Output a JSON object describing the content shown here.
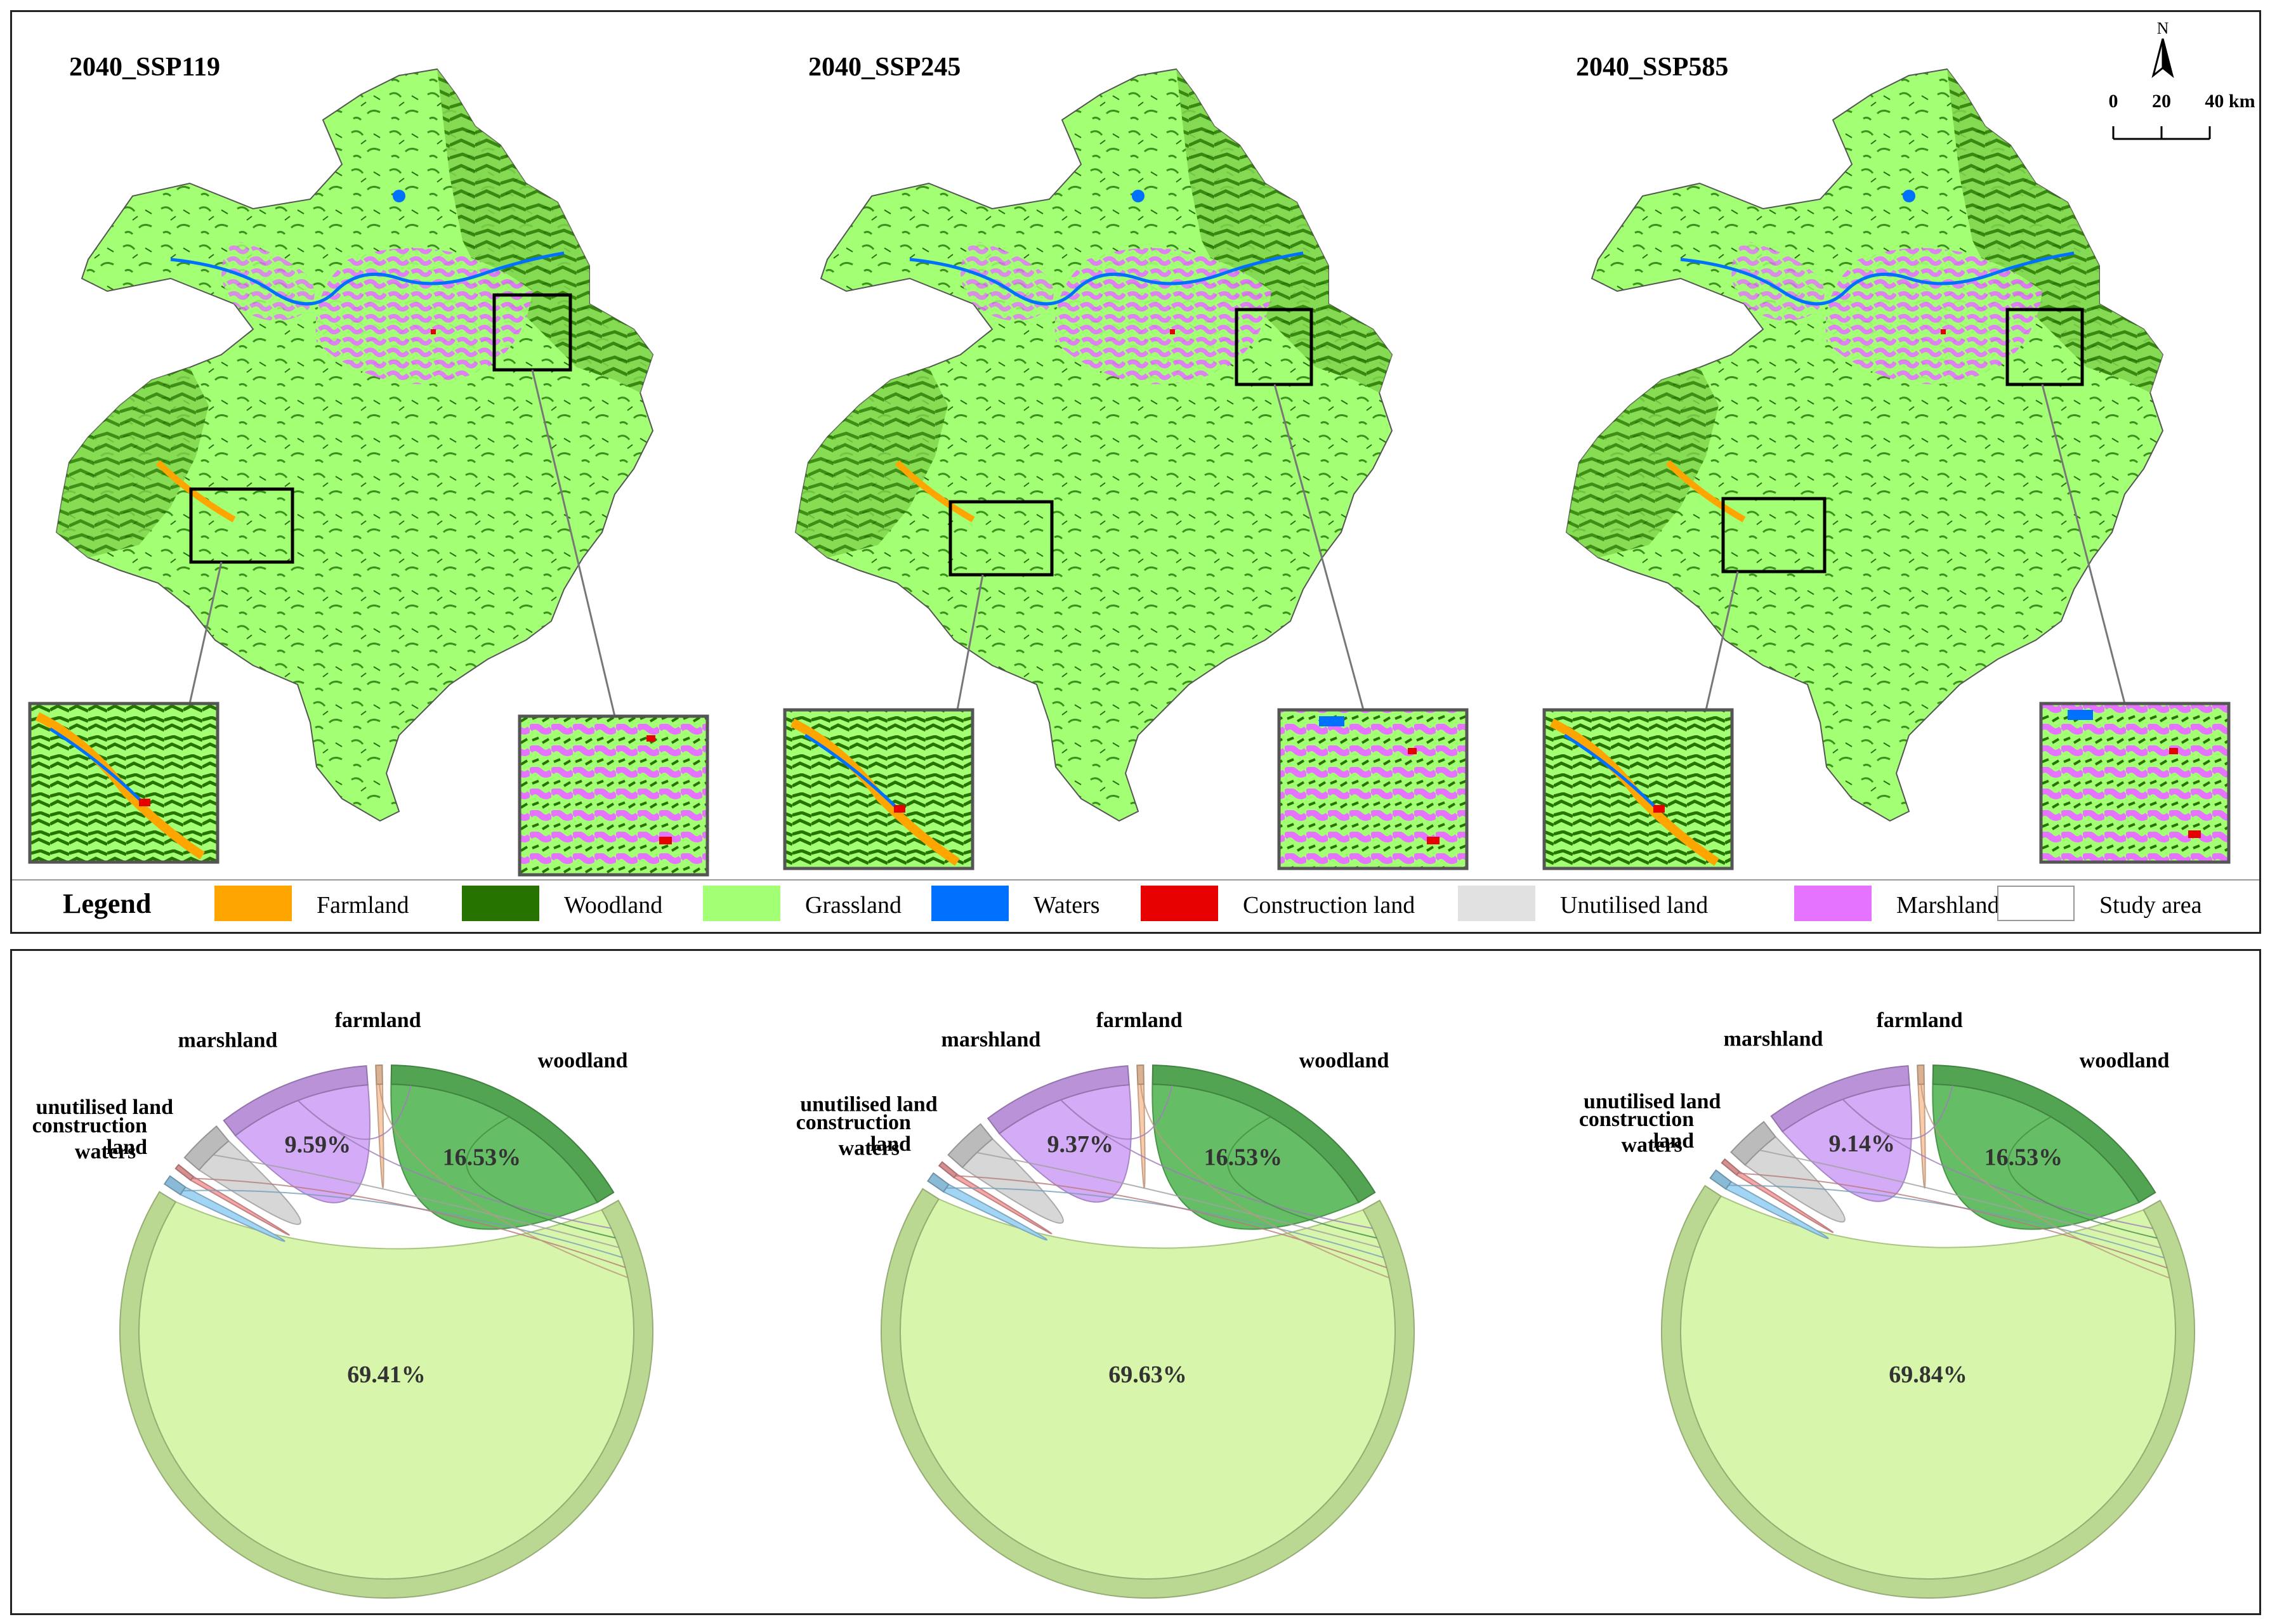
{
  "maps": [
    {
      "title": "2040_SSP119"
    },
    {
      "title": "2040_SSP245"
    },
    {
      "title": "2040_SSP585"
    }
  ],
  "north_label": "N",
  "scale": {
    "ticks": [
      "0",
      "20",
      "40 km"
    ]
  },
  "legend": {
    "title": "Legend",
    "items": [
      {
        "label": "Farmland",
        "color": "#FFA500"
      },
      {
        "label": "Woodland",
        "color": "#267300"
      },
      {
        "label": "Grassland",
        "color": "#A3FF73"
      },
      {
        "label": "Waters",
        "color": "#0070FF"
      },
      {
        "label": "Construction land",
        "color": "#E60000"
      },
      {
        "label": "Unutilised land",
        "color": "#E1E1E1"
      },
      {
        "label": "Marshland",
        "color": "#E573FF"
      },
      {
        "label": "Study area",
        "color": "#FFFFFF"
      }
    ]
  },
  "chart_data": [
    {
      "type": "chord",
      "scenario": "2040_SSP119",
      "segments": [
        {
          "name": "farmland",
          "value": 0.4,
          "color": "#F9C9A8",
          "pct_label": ""
        },
        {
          "name": "woodland",
          "value": 16.53,
          "color": "#5DBA5D",
          "pct_label": "16.53%"
        },
        {
          "name": "grassland",
          "value": 69.41,
          "color": "#D5F5A6",
          "pct_label": "69.41%"
        },
        {
          "name": "waters",
          "value": 0.6,
          "color": "#9DD3F3",
          "pct_label": ""
        },
        {
          "name": "construction land",
          "value": 0.3,
          "color": "#F3A3A3",
          "pct_label": ""
        },
        {
          "name": "unutilised land",
          "value": 2.77,
          "color": "#D5D5D5",
          "pct_label": ""
        },
        {
          "name": "marshland",
          "value": 9.59,
          "color": "#D2A6F5",
          "pct_label": "9.59%"
        }
      ]
    },
    {
      "type": "chord",
      "scenario": "2040_SSP245",
      "segments": [
        {
          "name": "farmland",
          "value": 0.4,
          "color": "#F9C9A8",
          "pct_label": ""
        },
        {
          "name": "woodland",
          "value": 16.53,
          "color": "#5DBA5D",
          "pct_label": "16.53%"
        },
        {
          "name": "grassland",
          "value": 69.63,
          "color": "#D5F5A6",
          "pct_label": "69.63%"
        },
        {
          "name": "waters",
          "value": 0.6,
          "color": "#9DD3F3",
          "pct_label": ""
        },
        {
          "name": "construction land",
          "value": 0.3,
          "color": "#F3A3A3",
          "pct_label": ""
        },
        {
          "name": "unutilised land",
          "value": 2.77,
          "color": "#D5D5D5",
          "pct_label": ""
        },
        {
          "name": "marshland",
          "value": 9.37,
          "color": "#D2A6F5",
          "pct_label": "9.37%"
        }
      ]
    },
    {
      "type": "chord",
      "scenario": "2040_SSP585",
      "segments": [
        {
          "name": "farmland",
          "value": 0.4,
          "color": "#F9C9A8",
          "pct_label": ""
        },
        {
          "name": "woodland",
          "value": 16.53,
          "color": "#5DBA5D",
          "pct_label": "16.53%"
        },
        {
          "name": "grassland",
          "value": 69.84,
          "color": "#D5F5A6",
          "pct_label": "69.84%"
        },
        {
          "name": "waters",
          "value": 0.6,
          "color": "#9DD3F3",
          "pct_label": ""
        },
        {
          "name": "construction land",
          "value": 0.3,
          "color": "#F3A3A3",
          "pct_label": ""
        },
        {
          "name": "unutilised land",
          "value": 2.77,
          "color": "#D5D5D5",
          "pct_label": ""
        },
        {
          "name": "marshland",
          "value": 9.14,
          "color": "#D2A6F5",
          "pct_label": "9.14%"
        }
      ]
    }
  ]
}
